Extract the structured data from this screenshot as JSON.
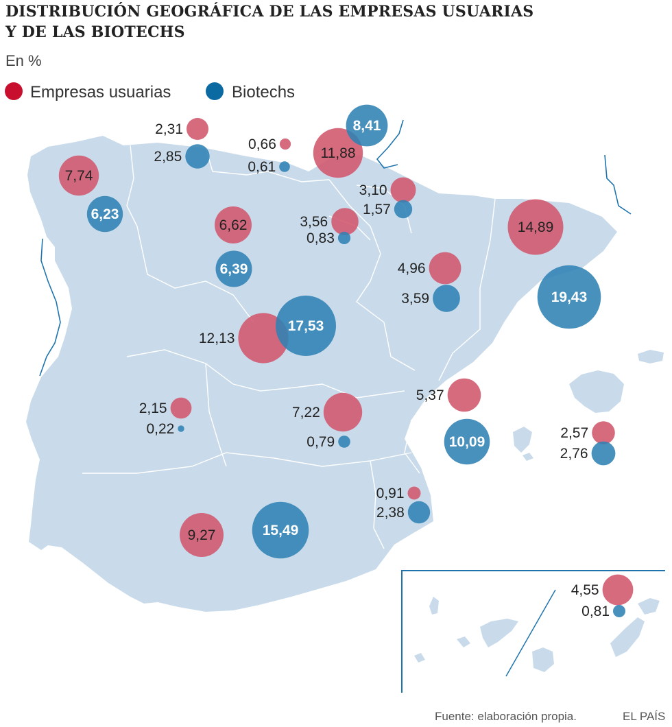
{
  "title_line1": "DISTRIBUCIÓN GEOGRÁFICA DE LAS EMPRESAS USUARIAS",
  "title_line2": "Y DE LAS BIOTECHS",
  "subtitle": "En %",
  "legend": {
    "usuarias": "Empresas usuarias",
    "biotechs": "Biotechs"
  },
  "colors": {
    "usuarias": "#d2576c",
    "usuarias_legend": "#c8102e",
    "biotechs": "#2f82b4",
    "biotechs_legend": "#0a6aa1",
    "land": "#c9dbea"
  },
  "source": "Fuente: elaboración propia.",
  "brand": "EL PAÍS",
  "chart_data": {
    "type": "proportional-symbol-map",
    "series": [
      {
        "name": "Empresas usuarias",
        "values": [
          {
            "label": "7,74",
            "value": 7.74
          },
          {
            "label": "2,31",
            "value": 2.31
          },
          {
            "label": "0,66",
            "value": 0.66
          },
          {
            "label": "11,88",
            "value": 11.88
          },
          {
            "label": "3,10",
            "value": 3.1
          },
          {
            "label": "3,56",
            "value": 3.56
          },
          {
            "label": "6,62",
            "value": 6.62
          },
          {
            "label": "14,89",
            "value": 14.89
          },
          {
            "label": "4,96",
            "value": 4.96
          },
          {
            "label": "12,13",
            "value": 12.13
          },
          {
            "label": "2,15",
            "value": 2.15
          },
          {
            "label": "7,22",
            "value": 7.22
          },
          {
            "label": "5,37",
            "value": 5.37
          },
          {
            "label": "2,57",
            "value": 2.57
          },
          {
            "label": "0,91",
            "value": 0.91
          },
          {
            "label": "9,27",
            "value": 9.27
          },
          {
            "label": "4,55",
            "value": 4.55
          }
        ]
      },
      {
        "name": "Biotechs",
        "values": [
          {
            "label": "6,23",
            "value": 6.23
          },
          {
            "label": "2,85",
            "value": 2.85
          },
          {
            "label": "0,61",
            "value": 0.61
          },
          {
            "label": "8,41",
            "value": 8.41
          },
          {
            "label": "1,57",
            "value": 1.57
          },
          {
            "label": "0,83",
            "value": 0.83
          },
          {
            "label": "6,39",
            "value": 6.39
          },
          {
            "label": "19,43",
            "value": 19.43
          },
          {
            "label": "3,59",
            "value": 3.59
          },
          {
            "label": "17,53",
            "value": 17.53
          },
          {
            "label": "0,22",
            "value": 0.22
          },
          {
            "label": "0,79",
            "value": 0.79
          },
          {
            "label": "10,09",
            "value": 10.09
          },
          {
            "label": "2,76",
            "value": 2.76
          },
          {
            "label": "2,38",
            "value": 2.38
          },
          {
            "label": "15,49",
            "value": 15.49
          },
          {
            "label": "0,81",
            "value": 0.81
          }
        ]
      }
    ]
  }
}
